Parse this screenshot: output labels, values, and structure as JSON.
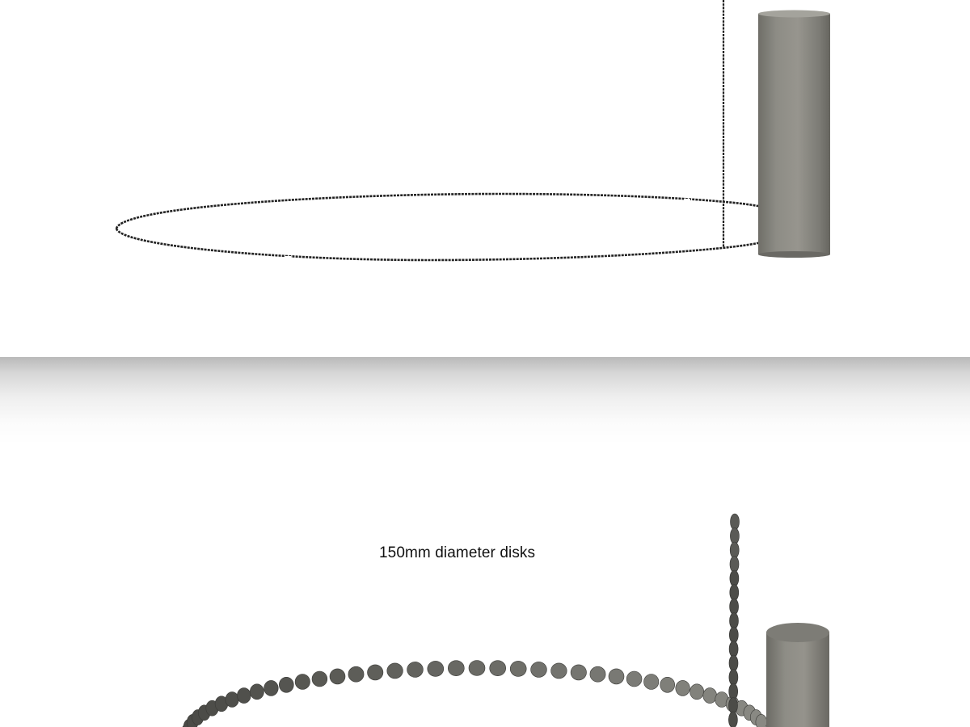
{
  "caption": "150mm diameter disks",
  "colors": {
    "background": "#ffffff",
    "cylinder_light": "#8f8e86",
    "cylinder_dark": "#6e6d67",
    "disk_dark": "#4a4a46",
    "disk_light": "#8a8a84",
    "divider": "#c8c8c8"
  }
}
